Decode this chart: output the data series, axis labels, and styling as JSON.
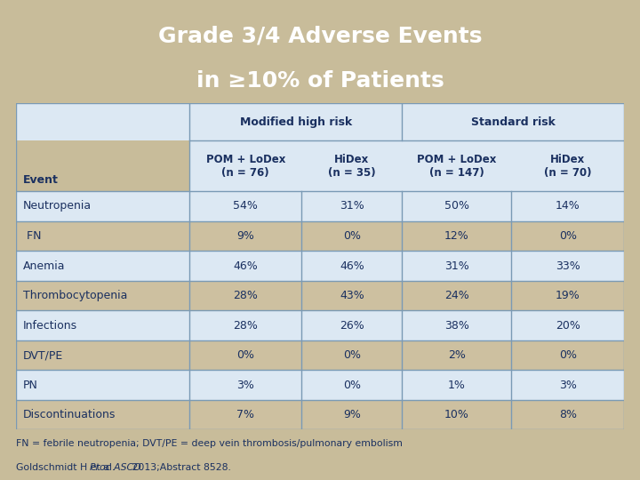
{
  "title_line1": "Grade 3/4 Adverse Events",
  "title_line2": "in ≥10% of Patients",
  "title_bg": "#0d2d5e",
  "title_color": "#ffffff",
  "table_bg": "#dce8f3",
  "header_bg": "#dce8f3",
  "border_color": "#7a9ab5",
  "text_color": "#1a3060",
  "col_headers": [
    "POM + LoDex\n(n = 76)",
    "HiDex\n(n = 35)",
    "POM + LoDex\n(n = 147)",
    "HiDex\n(n = 70)"
  ],
  "group_headers": [
    "Modified high risk",
    "Standard risk"
  ],
  "row_label": "Event",
  "events": [
    "Neutropenia",
    " FN",
    "Anemia",
    "Thrombocytopenia",
    "Infections",
    "DVT/PE",
    "PN",
    "Discontinuations"
  ],
  "data": [
    [
      "54%",
      "31%",
      "50%",
      "14%"
    ],
    [
      "9%",
      "0%",
      "12%",
      "0%"
    ],
    [
      "46%",
      "46%",
      "31%",
      "33%"
    ],
    [
      "28%",
      "43%",
      "24%",
      "19%"
    ],
    [
      "28%",
      "26%",
      "38%",
      "20%"
    ],
    [
      "0%",
      "0%",
      "2%",
      "0%"
    ],
    [
      "3%",
      "0%",
      "1%",
      "3%"
    ],
    [
      "7%",
      "9%",
      "10%",
      "8%"
    ]
  ],
  "footnote1": "FN = febrile neutropenia; DVT/PE = deep vein thrombosis/pulmonary embolism",
  "footnote2_normal": "Goldschmidt H et al. ",
  "footnote2_italic": "Proc ASCO",
  "footnote2_end": " 2013;Abstract 8528.",
  "row_colors": [
    "#dce8f3",
    "#cdc0a0",
    "#dce8f3",
    "#cdc0a0",
    "#dce8f3",
    "#cdc0a0",
    "#dce8f3",
    "#cdc0a0"
  ],
  "bg_color": "#c8bc9a",
  "table_border_color": "#7a9ab5"
}
